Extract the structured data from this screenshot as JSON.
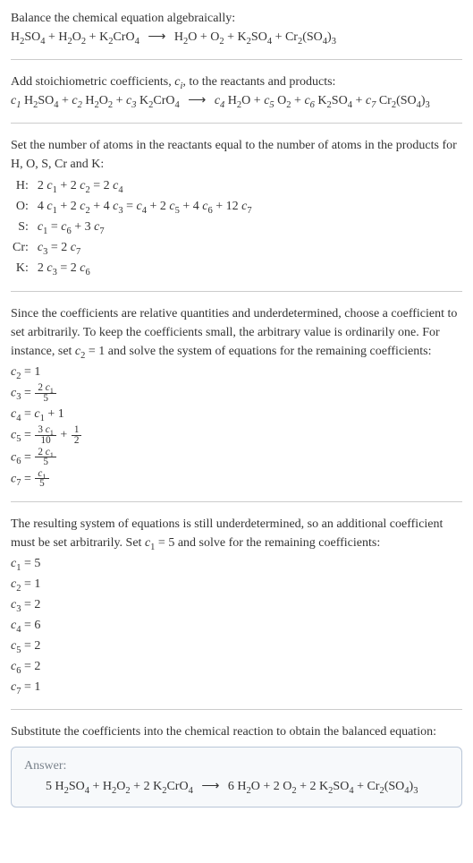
{
  "intro": {
    "line1": "Balance the chemical equation algebraically:",
    "eq_lhs": "H₂SO₄ + H₂O₂ + K₂CrO₄",
    "arrow": "⟶",
    "eq_rhs": "H₂O + O₂ + K₂SO₄ + Cr₂(SO₄)₃"
  },
  "stoich": {
    "text_a": "Add stoichiometric coefficients, ",
    "ci": "c",
    "ci_sub": "i",
    "text_b": ", to the reactants and products:",
    "eq_lhs_parts": [
      "c₁ H₂SO₄ + c₂ H₂O₂ + c₃ K₂CrO₄"
    ],
    "arrow": "⟶",
    "eq_rhs_parts": [
      "c₄ H₂O + c₅ O₂ + c₆ K₂SO₄ + c₇ Cr₂(SO₄)₃"
    ]
  },
  "atoms": {
    "text": "Set the number of atoms in the reactants equal to the number of atoms in the products for H, O, S, Cr and K:",
    "rows": [
      {
        "elem": "H:",
        "eq": "2 c₁ + 2 c₂ = 2 c₄"
      },
      {
        "elem": "O:",
        "eq": "4 c₁ + 2 c₂ + 4 c₃ = c₄ + 2 c₅ + 4 c₆ + 12 c₇"
      },
      {
        "elem": "S:",
        "eq": "c₁ = c₆ + 3 c₇"
      },
      {
        "elem": "Cr:",
        "eq": "c₃ = 2 c₇"
      },
      {
        "elem": "K:",
        "eq": "2 c₃ = 2 c₆"
      }
    ]
  },
  "underdet1": {
    "text": "Since the coefficients are relative quantities and underdetermined, choose a coefficient to set arbitrarily. To keep the coefficients small, the arbitrary value is ordinarily one. For instance, set c₂ = 1 and solve the system of equations for the remaining coefficients:",
    "lines": [
      {
        "lhs": "c₂",
        "rhs_type": "plain",
        "rhs": "1"
      },
      {
        "lhs": "c₃",
        "rhs_type": "frac",
        "num": "2 c₁",
        "den": "5"
      },
      {
        "lhs": "c₄",
        "rhs_type": "plain",
        "rhs": "c₁ + 1"
      },
      {
        "lhs": "c₅",
        "rhs_type": "frac_plus",
        "num": "3 c₁",
        "den": "10",
        "plus_num": "1",
        "plus_den": "2"
      },
      {
        "lhs": "c₆",
        "rhs_type": "frac",
        "num": "2 c₁",
        "den": "5"
      },
      {
        "lhs": "c₇",
        "rhs_type": "frac",
        "num": "c₁",
        "den": "5"
      }
    ]
  },
  "underdet2": {
    "text": "The resulting system of equations is still underdetermined, so an additional coefficient must be set arbitrarily. Set c₁ = 5 and solve for the remaining coefficients:",
    "lines": [
      {
        "lhs": "c₁",
        "rhs": "5"
      },
      {
        "lhs": "c₂",
        "rhs": "1"
      },
      {
        "lhs": "c₃",
        "rhs": "2"
      },
      {
        "lhs": "c₄",
        "rhs": "6"
      },
      {
        "lhs": "c₅",
        "rhs": "2"
      },
      {
        "lhs": "c₆",
        "rhs": "2"
      },
      {
        "lhs": "c₇",
        "rhs": "1"
      }
    ]
  },
  "subst": {
    "text": "Substitute the coefficients into the chemical reaction to obtain the balanced equation:"
  },
  "answer": {
    "label": "Answer:",
    "eq_lhs": "5 H₂SO₄ + H₂O₂ + 2 K₂CrO₄",
    "arrow": "⟶",
    "eq_rhs": "6 H₂O + 2 O₂ + 2 K₂SO₄ + Cr₂(SO₄)₃"
  }
}
